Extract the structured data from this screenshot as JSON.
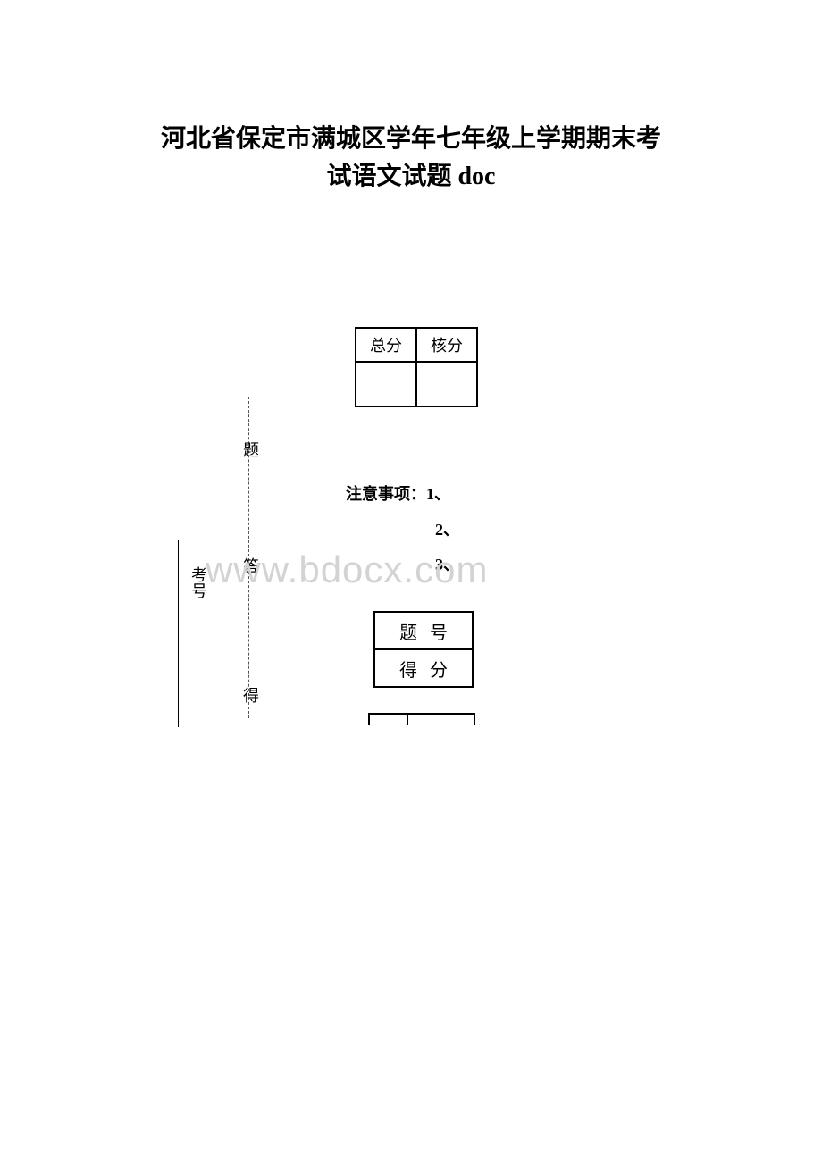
{
  "title": {
    "line1": "河北省保定市满城区学年七年级上学期期末考",
    "line2": "试语文试题 doc"
  },
  "score_table": {
    "headers": [
      "总分",
      "核分"
    ],
    "border_color": "#000000"
  },
  "vertical_labels": {
    "kaohao": "考号",
    "ti": "题",
    "da": "答",
    "de": "得"
  },
  "notes": {
    "label": "注意事项：",
    "item1": "1、",
    "item2": "2、",
    "item3": "3、"
  },
  "watermark": {
    "text": "www.bdocx.com",
    "color": "#d3d3d3"
  },
  "question_table": {
    "row1": "题号",
    "row2": "得分"
  },
  "colors": {
    "background": "#ffffff",
    "text": "#000000",
    "border": "#000000"
  },
  "typography": {
    "title_fontsize": 28,
    "body_fontsize": 18,
    "watermark_fontsize": 42
  }
}
